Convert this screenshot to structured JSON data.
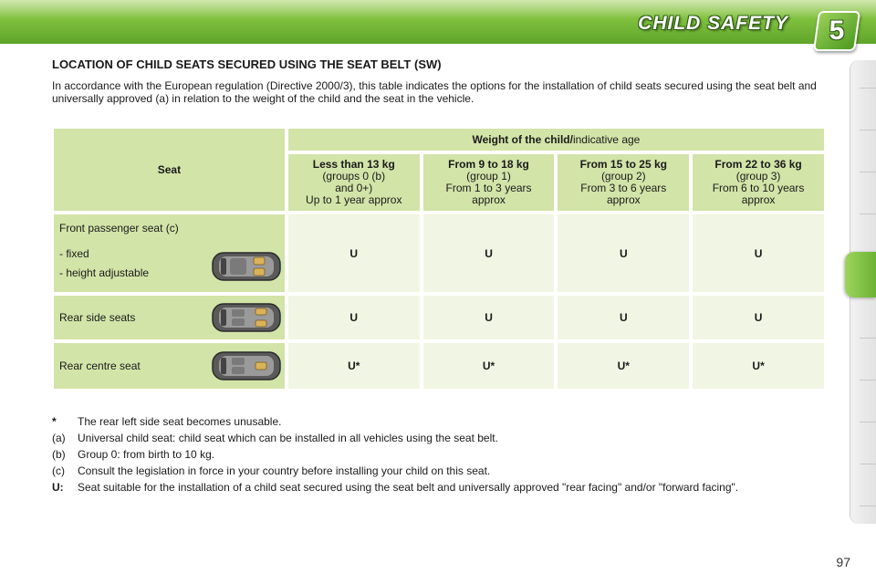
{
  "header": {
    "title": "CHILD SAFETY",
    "chapter": "5"
  },
  "section_title": "LOCATION OF CHILD SEATS SECURED USING THE SEAT BELT (SW)",
  "intro": "In accordance with the European regulation (Directive 2000/3), this table indicates the options for the installation of child seats secured using the seat belt and universally approved (a) in relation to the weight of the child and the seat in the vehicle.",
  "table": {
    "seat_header": "Seat",
    "weight_header_bold": "Weight of the child/",
    "weight_header_rest": "indicative age",
    "columns": [
      {
        "title": "Less than 13 kg",
        "line2": "(groups 0 (b)",
        "line3": "and 0+)",
        "line4": "Up to 1 year approx"
      },
      {
        "title": "From 9 to 18 kg",
        "line2": "(group 1)",
        "line3": "From 1 to 3 years",
        "line4": "approx"
      },
      {
        "title": "From 15 to 25 kg",
        "line2": "(group 2)",
        "line3": "From 3 to 6 years",
        "line4": "approx"
      },
      {
        "title": "From 22 to 36 kg",
        "line2": "(group 3)",
        "line3": "From 6 to 10 years",
        "line4": "approx"
      }
    ],
    "rows": [
      {
        "label": "Front passenger seat (c)",
        "sub1": "-  fixed",
        "sub2": "-  height adjustable",
        "values": [
          "U",
          "U",
          "U",
          "U"
        ]
      },
      {
        "label": "Rear side seats",
        "values": [
          "U",
          "U",
          "U",
          "U"
        ]
      },
      {
        "label": "Rear centre seat",
        "values": [
          "U*",
          "U*",
          "U*",
          "U*"
        ]
      }
    ]
  },
  "notes": [
    {
      "key": "*",
      "text": "The rear left side seat becomes unusable."
    },
    {
      "key": "(a)",
      "text": "Universal child seat: child seat which can be installed in all vehicles using the seat belt."
    },
    {
      "key": "(b)",
      "text": "Group 0: from birth to 10 kg."
    },
    {
      "key": "(c)",
      "text": "Consult the legislation in force in your country before installing your child on this seat."
    },
    {
      "key": "U:",
      "text": "Seat suitable for the installation of a child seat secured using the seat belt and universally approved \"rear facing\" and/or \"forward facing\"."
    }
  ],
  "page_number": "97",
  "colors": {
    "header_green": "#7fbf3e",
    "table_head": "#d2e4a8",
    "table_cell": "#f1f5e3"
  }
}
